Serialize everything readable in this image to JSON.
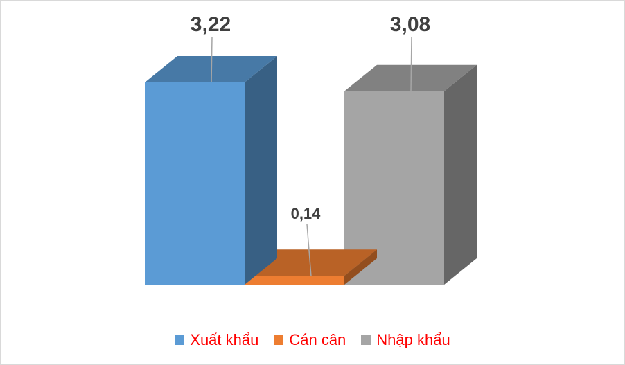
{
  "chart_data": {
    "type": "bar",
    "categories": [
      "Xuất khẩu",
      "Cán cân",
      "Nhập khẩu"
    ],
    "values": [
      3.22,
      0.14,
      3.08
    ],
    "value_labels": [
      "3,22",
      "0,14",
      "3,08"
    ],
    "colors": [
      "#5b9bd5",
      "#ed7d31",
      "#a5a5a5"
    ],
    "title": "",
    "xlabel": "",
    "ylabel": "",
    "ylim": [
      0,
      3.22
    ],
    "grid": false,
    "legend_position": "bottom",
    "style": "3d"
  },
  "legend": {
    "items": [
      {
        "label": "Xuất khẩu",
        "color": "#5b9bd5"
      },
      {
        "label": "Cán cân",
        "color": "#ed7d31"
      },
      {
        "label": "Nhập khẩu",
        "color": "#a5a5a5"
      }
    ]
  }
}
